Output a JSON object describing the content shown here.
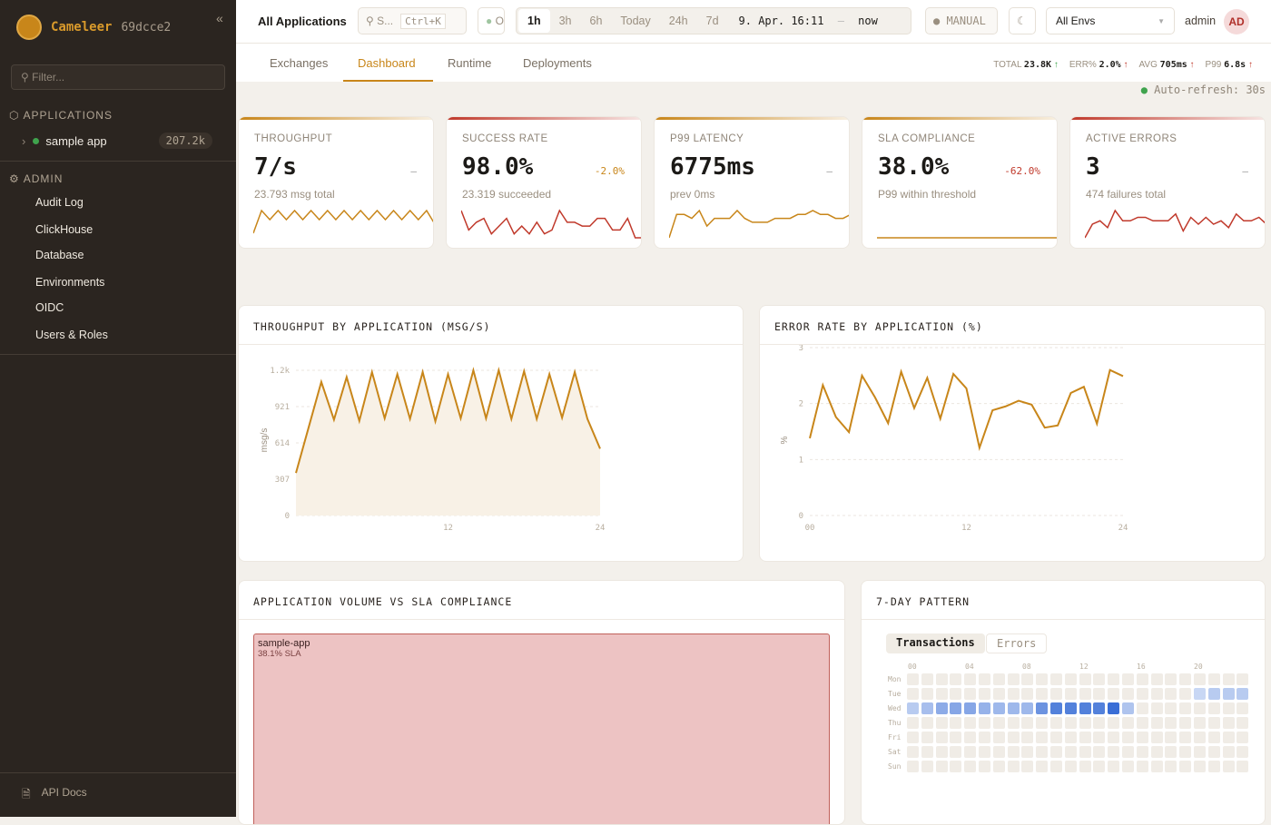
{
  "sidebar": {
    "brand": "Cameleer",
    "version": "69dcce2",
    "filter_placeholder": "Filter...",
    "applications_label": "APPLICATIONS",
    "apps": [
      {
        "name": "sample app",
        "count": "207.2k",
        "status": "green"
      }
    ],
    "admin_label": "ADMIN",
    "admin_items": [
      "Audit Log",
      "ClickHouse",
      "Database",
      "Environments",
      "OIDC",
      "Users & Roles"
    ],
    "api_docs": "API Docs"
  },
  "topbar": {
    "scope": "All Applications",
    "search_placeholder": "S...",
    "search_shortcut": "Ctrl+K",
    "status_short": "O",
    "ranges": [
      "1h",
      "3h",
      "6h",
      "Today",
      "24h",
      "7d"
    ],
    "active_range": "1h",
    "range_start": "9. Apr. 16:11",
    "range_sep": "—",
    "range_end": "now",
    "refresh_mode": "MANUAL",
    "env": "All Envs",
    "user": "admin",
    "avatar": "AD"
  },
  "tabs": [
    "Exchanges",
    "Dashboard",
    "Runtime",
    "Deployments"
  ],
  "active_tab": "Dashboard",
  "summary": {
    "total_label": "TOTAL",
    "total": "23.8K",
    "err_label": "ERR%",
    "err": "2.0%",
    "avg_label": "AVG",
    "avg": "705ms",
    "p99_label": "P99",
    "p99": "6.8s"
  },
  "auto_refresh": "Auto-refresh: 30s",
  "kpis": [
    {
      "label": "THROUGHPUT",
      "value": "7/s",
      "delta": "–",
      "sub": "23.793 msg total",
      "color": "#c8861a",
      "spark": [
        1,
        6,
        4,
        6,
        4,
        6,
        4,
        6,
        4,
        6,
        4,
        6,
        4,
        6,
        4,
        6,
        4,
        6,
        4,
        6,
        4,
        6,
        3
      ]
    },
    {
      "label": "SUCCESS RATE",
      "value": "98.0%",
      "delta": "-2.0%",
      "sub": "23.319 succeeded",
      "color": "#c0392b",
      "spark": [
        7,
        2,
        4,
        5,
        1,
        3,
        5,
        1,
        3,
        1,
        4,
        1,
        2,
        7,
        4,
        4,
        3,
        3,
        5,
        5,
        2,
        2,
        5,
        0,
        0
      ]
    },
    {
      "label": "P99 LATENCY",
      "value": "6775ms",
      "delta": "–",
      "sub": "prev 0ms",
      "color": "#c8861a",
      "spark": [
        0,
        6,
        6,
        5,
        7,
        3,
        5,
        5,
        5,
        7,
        5,
        4,
        4,
        4,
        5,
        5,
        5,
        6,
        6,
        7,
        6,
        6,
        5,
        5,
        6
      ]
    },
    {
      "label": "SLA COMPLIANCE",
      "value": "38.0%",
      "delta": "-62.0%",
      "sub": "P99 within threshold",
      "color": "#c8861a",
      "spark": [
        0,
        0
      ]
    },
    {
      "label": "ACTIVE ERRORS",
      "value": "3",
      "delta": "–",
      "sub": "474 failures total",
      "color": "#c0392b",
      "spark": [
        0,
        4,
        5,
        3,
        8,
        5,
        5,
        6,
        6,
        5,
        5,
        5,
        7,
        2,
        6,
        4,
        6,
        4,
        5,
        3,
        7,
        5,
        5,
        6,
        4
      ]
    }
  ],
  "chart_data": [
    {
      "type": "area",
      "title": "THROUGHPUT BY APPLICATION (MSG/S)",
      "ylabel": "msg/s",
      "xlabel": "",
      "x_ticks": [
        "12",
        "24"
      ],
      "y_ticks": [
        "0",
        "307",
        "614",
        "921",
        "1.2k"
      ],
      "ylim": [
        0,
        1228
      ],
      "xlim": [
        0,
        24
      ],
      "grid": true,
      "color": "#c8861a",
      "x": [
        0,
        1,
        2,
        3,
        4,
        5,
        6,
        7,
        8,
        9,
        10,
        11,
        12,
        13,
        14,
        15,
        16,
        17,
        18,
        19,
        20,
        21,
        22,
        23,
        24
      ],
      "values": [
        360,
        745,
        1130,
        810,
        1170,
        800,
        1213,
        822,
        1195,
        817,
        1213,
        797,
        1195,
        822,
        1228,
        822,
        1228,
        817,
        1220,
        817,
        1195,
        827,
        1213,
        817,
        565
      ]
    },
    {
      "type": "line",
      "title": "ERROR RATE BY APPLICATION (%)",
      "ylabel": "%",
      "xlabel": "",
      "x_ticks": [
        "00",
        "12",
        "24"
      ],
      "y_ticks": [
        "0",
        "1",
        "2",
        "3"
      ],
      "ylim": [
        0,
        3
      ],
      "xlim": [
        0,
        24
      ],
      "grid": true,
      "color": "#c8861a",
      "x": [
        0,
        1,
        2,
        3,
        4,
        5,
        6,
        7,
        8,
        9,
        10,
        11,
        12,
        13,
        14,
        15,
        16,
        17,
        18,
        19,
        20,
        21,
        22,
        23,
        24
      ],
      "values": [
        1.38,
        2.33,
        1.76,
        1.49,
        2.5,
        2.11,
        1.65,
        2.57,
        1.92,
        2.46,
        1.73,
        2.53,
        2.27,
        1.21,
        1.88,
        1.95,
        2.05,
        1.98,
        1.57,
        1.61,
        2.19,
        2.3,
        1.64,
        2.6,
        2.49
      ]
    }
  ],
  "treemap": {
    "title": "APPLICATION VOLUME VS SLA COMPLIANCE",
    "items": [
      {
        "name": "sample-app",
        "sla": "38.1% SLA"
      }
    ]
  },
  "pattern": {
    "title": "7-DAY PATTERN",
    "toggles": [
      "Transactions",
      "Errors"
    ],
    "active": "Transactions",
    "hours": [
      "00",
      "04",
      "08",
      "12",
      "16",
      "20"
    ],
    "days": [
      "Mon",
      "Tue",
      "Wed",
      "Thu",
      "Fri",
      "Sat",
      "Sun"
    ],
    "cells": {
      "Tue": {
        "20": 0.15,
        "21": 0.25,
        "22": 0.25,
        "23": 0.25
      },
      "Wed": {
        "0": 0.25,
        "1": 0.35,
        "2": 0.5,
        "3": 0.55,
        "4": 0.55,
        "5": 0.45,
        "6": 0.4,
        "7": 0.4,
        "8": 0.4,
        "9": 0.7,
        "10": 0.85,
        "11": 0.85,
        "12": 0.85,
        "13": 0.85,
        "14": 1.0,
        "15": 0.3
      }
    }
  }
}
